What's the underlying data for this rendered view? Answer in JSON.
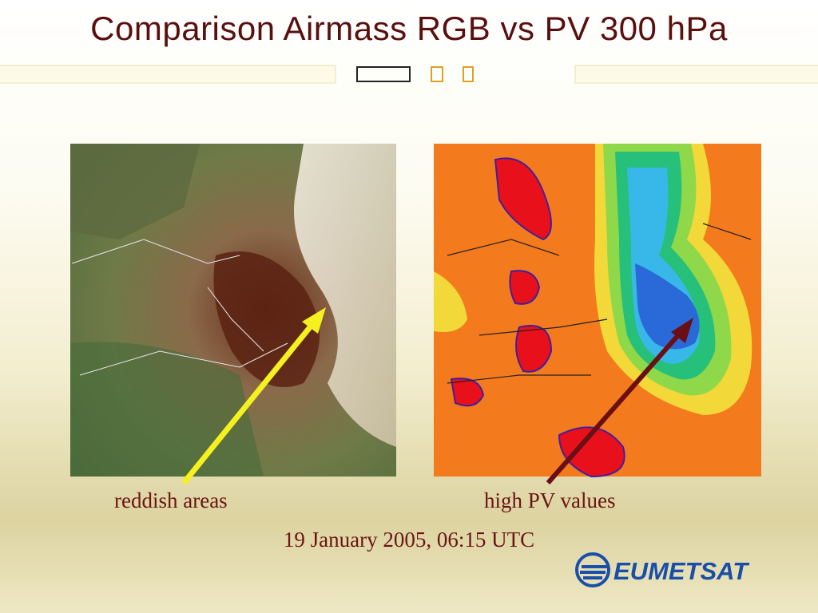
{
  "header": {
    "title": "Comparison Airmass RGB vs PV 300 hPa"
  },
  "captions": {
    "left": "reddish areas",
    "right": "high PV values",
    "date": "19 January 2005, 06:15 UTC"
  },
  "logo": {
    "text": "EUMETSAT"
  }
}
